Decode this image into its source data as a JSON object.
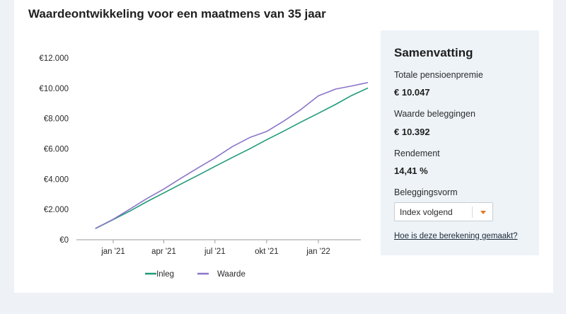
{
  "page": {
    "title": "Waardeontwikkeling voor een maatmens van 35 jaar"
  },
  "summary": {
    "title": "Samenvatting",
    "premium_label": "Totale pensioenpremie",
    "premium_value": "€ 10.047",
    "investments_label": "Waarde beleggingen",
    "investments_value": "€ 10.392",
    "return_label": "Rendement",
    "return_value": "14,41 %",
    "investment_type_label": "Beleggingsvorm",
    "investment_type_selected": "Index volgend",
    "calc_link": "Hoe is deze berekening gemaakt?"
  },
  "colors": {
    "inleg": "#1f9a78",
    "waarde": "#8c74c8",
    "axis": "#9a9a9a",
    "caret": "#e07a1f"
  },
  "chart_data": {
    "type": "line",
    "title": "",
    "xlabel": "",
    "ylabel": "",
    "ylim": [
      0,
      12000
    ],
    "yticks": [
      0,
      2000,
      4000,
      6000,
      8000,
      10000,
      12000
    ],
    "ytick_labels": [
      "€0",
      "€2.000",
      "€4.000",
      "€6.000",
      "€8.000",
      "€10.000",
      "€12.000"
    ],
    "xlim": [
      "2020-12-01",
      "2022-04-01"
    ],
    "xticks": [
      "2021-01-01",
      "2021-04-01",
      "2021-07-01",
      "2021-10-01",
      "2022-01-01"
    ],
    "xtick_labels": [
      "jan '21",
      "apr '21",
      "jul '21",
      "okt '21",
      "jan '22"
    ],
    "x": [
      "2020-12-01",
      "2021-01-01",
      "2021-02-01",
      "2021-03-01",
      "2021-04-01",
      "2021-05-01",
      "2021-06-01",
      "2021-07-01",
      "2021-08-01",
      "2021-09-01",
      "2021-10-01",
      "2021-11-01",
      "2021-12-01",
      "2022-01-01",
      "2022-02-01",
      "2022-03-01",
      "2022-04-01"
    ],
    "series": [
      {
        "name": "Inleg",
        "values": [
          750,
          1330,
          1920,
          2500,
          3090,
          3670,
          4260,
          4840,
          5430,
          6010,
          6600,
          7180,
          7770,
          8350,
          8940,
          9520,
          10047
        ]
      },
      {
        "name": "Waarde",
        "values": [
          760,
          1350,
          2050,
          2700,
          3350,
          4050,
          4750,
          5400,
          6150,
          6750,
          7150,
          7850,
          8600,
          9500,
          9950,
          10150,
          10392
        ]
      }
    ],
    "legend": "bottom",
    "grid": false
  }
}
